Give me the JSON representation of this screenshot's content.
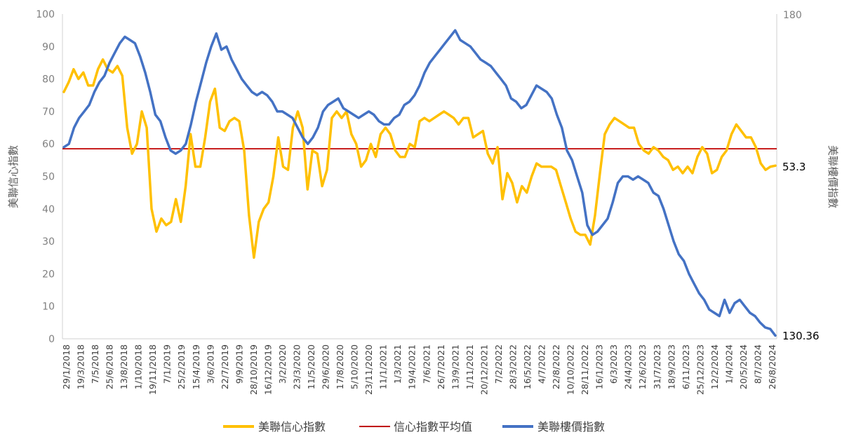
{
  "chart_data": {
    "type": "line",
    "title": "",
    "y_left": {
      "label": "美聯信心指數",
      "min": 0,
      "max": 100,
      "ticks": [
        0,
        10,
        20,
        30,
        40,
        50,
        60,
        70,
        80,
        90,
        100
      ]
    },
    "y_right": {
      "label": "美聯樓價指數",
      "top_tick": "180"
    },
    "x_tick_labels": [
      "29/1/2018",
      "19/3/2018",
      "7/5/2018",
      "25/6/2018",
      "13/8/2018",
      "1/10/2018",
      "19/11/2018",
      "7/1/2019",
      "25/2/2019",
      "15/4/2019",
      "3/6/2019",
      "22/7/2019",
      "9/9/2019",
      "28/10/2019",
      "16/12/2019",
      "3/2/2020",
      "23/3/2020",
      "11/5/2020",
      "29/6/2020",
      "17/8/2020",
      "5/10/2020",
      "23/11/2020",
      "11/1/2021",
      "1/3/2021",
      "19/4/2021",
      "7/6/2021",
      "26/7/2021",
      "13/9/2021",
      "1/11/2021",
      "20/12/2021",
      "7/2/2022",
      "28/3/2022",
      "16/5/2022",
      "4/7/2022",
      "22/8/2022",
      "10/10/2022",
      "28/11/2022",
      "16/1/2023",
      "6/3/2023",
      "24/4/2023",
      "12/6/2023",
      "31/7/2023",
      "18/9/2023",
      "6/11/2023",
      "25/12/2023",
      "12/2/2024",
      "1/4/2024",
      "20/5/2024",
      "8/7/2024",
      "26/8/2024"
    ],
    "legend": [
      {
        "name": "美聯信心指數",
        "color": "#FFC000"
      },
      {
        "name": "信心指數平均值",
        "color": "#C00000"
      },
      {
        "name": "美聯樓價指數",
        "color": "#4472C4"
      }
    ],
    "average_value": 58.5,
    "end_labels": {
      "confidence": "53.3",
      "price": "130.36"
    },
    "series": [
      {
        "name": "美聯信心指數",
        "axis": "left",
        "color": "#FFC000",
        "values": [
          76,
          79,
          83,
          80,
          82,
          78,
          78,
          83,
          86,
          83,
          82,
          84,
          81,
          65,
          57,
          60,
          70,
          65,
          40,
          33,
          37,
          35,
          36,
          43,
          36,
          47,
          63,
          53,
          53,
          62,
          73,
          77,
          65,
          64,
          67,
          68,
          67,
          58,
          38,
          25,
          36,
          40,
          42,
          50,
          62,
          53,
          52,
          65,
          70,
          65,
          46,
          58,
          57,
          47,
          52,
          68,
          70,
          68,
          70,
          63,
          60,
          53,
          55,
          60,
          56,
          63,
          65,
          63,
          58,
          56,
          56,
          60,
          59,
          67,
          68,
          67,
          68,
          69,
          70,
          69,
          68,
          66,
          68,
          68,
          62,
          63,
          64,
          57,
          54,
          59,
          43,
          51,
          48,
          42,
          47,
          45,
          50,
          54,
          53,
          53,
          53,
          52,
          47,
          42,
          37,
          33,
          32,
          32,
          29,
          38,
          51,
          63,
          66,
          68,
          67,
          66,
          65,
          65,
          60,
          58,
          57,
          59,
          58,
          56,
          55,
          52,
          53,
          51,
          53,
          51,
          56,
          59,
          57,
          51,
          52,
          56,
          58,
          63,
          66,
          64,
          62,
          62,
          59,
          54,
          52,
          53,
          53.3
        ]
      },
      {
        "name": "美聯樓價指數",
        "axis": "left",
        "color": "#4472C4",
        "values": [
          59,
          60,
          65,
          68,
          70,
          72,
          76,
          79,
          81,
          85,
          88,
          91,
          93,
          92,
          91,
          87,
          82,
          76,
          69,
          67,
          62,
          58,
          57,
          58,
          60,
          66,
          73,
          79,
          85,
          90,
          94,
          89,
          90,
          86,
          83,
          80,
          78,
          76,
          75,
          76,
          75,
          73,
          70,
          70,
          69,
          68,
          65,
          62,
          60,
          62,
          65,
          70,
          72,
          73,
          74,
          71,
          70,
          69,
          68,
          69,
          70,
          69,
          67,
          66,
          66,
          68,
          69,
          72,
          73,
          75,
          78,
          82,
          85,
          87,
          89,
          91,
          93,
          95,
          92,
          91,
          90,
          88,
          86,
          85,
          84,
          82,
          80,
          78,
          74,
          73,
          71,
          72,
          75,
          78,
          77,
          76,
          74,
          69,
          65,
          58,
          55,
          50,
          45,
          35,
          32,
          33,
          35,
          37,
          42,
          48,
          50,
          50,
          49,
          50,
          49,
          48,
          45,
          44,
          40,
          35,
          30,
          26,
          24,
          20,
          17,
          14,
          12,
          9,
          8,
          7,
          12,
          8,
          11,
          12,
          10,
          8,
          7,
          5,
          3.5,
          3,
          1
        ]
      }
    ]
  }
}
